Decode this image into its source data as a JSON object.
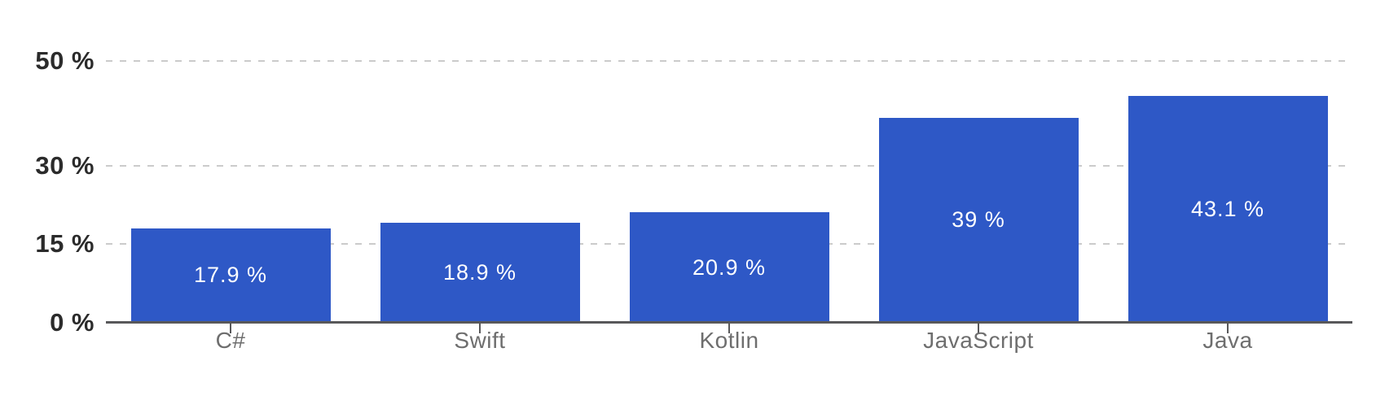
{
  "chart_data": {
    "type": "bar",
    "categories": [
      "C#",
      "Swift",
      "Kotlin",
      "JavaScript",
      "Java"
    ],
    "values": [
      17.9,
      18.9,
      20.9,
      39,
      43.1
    ],
    "bar_labels": [
      "17.9 %",
      "18.9 %",
      "20.9 %",
      "39 %",
      "43.1 %"
    ],
    "y_axis": {
      "unit": "%",
      "range": [
        0,
        50
      ],
      "ticks": [
        {
          "value": 0,
          "label": "0 %"
        },
        {
          "value": 15,
          "label": "15 %"
        },
        {
          "value": 30,
          "label": "30 %"
        },
        {
          "value": 50,
          "label": "50 %"
        }
      ]
    },
    "grid": {
      "horizontal": true,
      "style": "dashed",
      "vertical": false
    },
    "legend": "none",
    "value_labels_position": "centered-inside-bars",
    "colors": {
      "bar": "#2e58c6",
      "bar_value_text": "#ffffff",
      "grid_line": "#cbcbcb",
      "axis_line": "#58585a",
      "tick_mark": "#58585a",
      "y_tick_text": "#2b2b2b",
      "x_tick_text": "#6e6e6e",
      "background": "#ffffff"
    }
  }
}
